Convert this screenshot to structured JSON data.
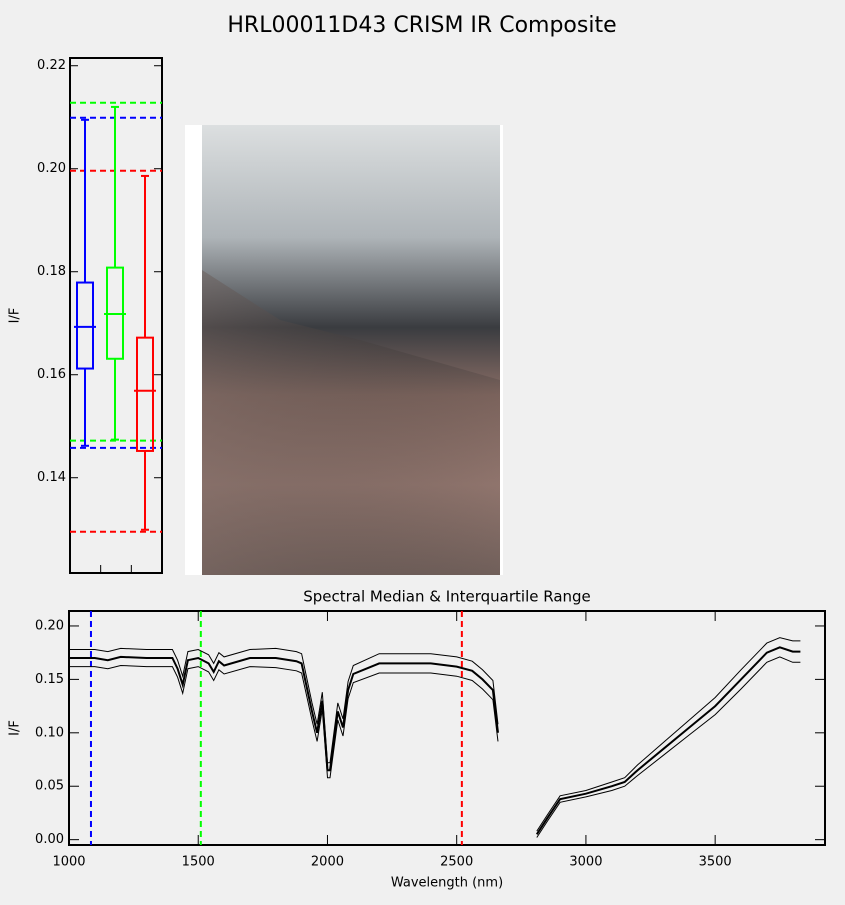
{
  "title": "HRL00011D43 CRISM IR Composite",
  "chart_data": [
    {
      "type": "box",
      "ylabel": "I/F",
      "ylim": [
        0.1215,
        0.2215
      ],
      "yticks": [
        0.14,
        0.16,
        0.18,
        {
          "value": 0.2,
          "label": "0.20"
        },
        0.22
      ],
      "boxes": [
        {
          "color": "#0000ff",
          "whisker_low": 0.1462,
          "q1": 0.1612,
          "median": 0.1693,
          "q3": 0.1779,
          "whisker_high": 0.2095
        },
        {
          "color": "#00ff00",
          "whisker_low": 0.1474,
          "q1": 0.1631,
          "median": 0.1718,
          "q3": 0.1808,
          "whisker_high": 0.212
        },
        {
          "color": "#ff0000",
          "whisker_low": 0.1299,
          "q1": 0.1452,
          "median": 0.1569,
          "q3": 0.1672,
          "whisker_high": 0.1986
        }
      ],
      "hlines": [
        {
          "value": 0.2099,
          "color": "#0000ff"
        },
        {
          "value": 0.1458,
          "color": "#0000ff"
        },
        {
          "value": 0.2128,
          "color": "#00ff00"
        },
        {
          "value": 0.1472,
          "color": "#00ff00"
        },
        {
          "value": 0.1996,
          "color": "#ff0000"
        },
        {
          "value": 0.1295,
          "color": "#ff0000"
        }
      ]
    },
    {
      "type": "line",
      "title": "Spectral Median & Interquartile Range",
      "xlabel": "Wavelength (nm)",
      "ylabel": "I/F",
      "xlim": [
        1000,
        3925
      ],
      "ylim": [
        -0.005,
        0.214
      ],
      "xticks": [
        1000,
        1500,
        2000,
        2500,
        3000,
        3500
      ],
      "yticks": [
        {
          "value": 0,
          "label": "0.00"
        },
        0.05,
        {
          "value": 0.1,
          "label": "0.10"
        },
        0.15,
        {
          "value": 0.2,
          "label": "0.20"
        }
      ],
      "x": [
        1000,
        1100,
        1150,
        1200,
        1300,
        1400,
        1420,
        1440,
        1460,
        1500,
        1540,
        1560,
        1580,
        1600,
        1700,
        1800,
        1880,
        1900,
        1940,
        1960,
        1980,
        2000,
        2010,
        2040,
        2060,
        2080,
        2100,
        2200,
        2300,
        2400,
        2500,
        2560,
        2600,
        2640,
        2660,
        2700,
        2810,
        2850,
        2900,
        3000,
        3100,
        3150,
        3200,
        3300,
        3400,
        3500,
        3600,
        3700,
        3750,
        3800,
        3830
      ],
      "series": [
        {
          "color": "#000000",
          "linewidth": 2,
          "values": [
            0.17,
            0.17,
            0.168,
            0.171,
            0.17,
            0.17,
            0.16,
            0.145,
            0.168,
            0.17,
            0.165,
            0.157,
            0.167,
            0.163,
            0.17,
            0.17,
            0.167,
            0.165,
            0.12,
            0.1,
            0.13,
            0.065,
            0.065,
            0.12,
            0.105,
            0.14,
            0.155,
            0.165,
            0.165,
            0.165,
            0.162,
            0.158,
            0.15,
            0.14,
            0.1,
            null,
            0.005,
            0.02,
            0.038,
            0.043,
            0.05,
            0.054,
            0.065,
            0.085,
            0.105,
            0.125,
            0.15,
            0.175,
            0.18,
            0.176,
            0.176
          ]
        },
        {
          "color": "#000000",
          "linewidth": 1,
          "values": [
            0.178,
            0.178,
            0.176,
            0.179,
            0.178,
            0.178,
            0.168,
            0.153,
            0.176,
            0.178,
            0.173,
            0.165,
            0.175,
            0.171,
            0.178,
            0.179,
            0.176,
            0.174,
            0.128,
            0.108,
            0.138,
            0.072,
            0.072,
            0.128,
            0.113,
            0.148,
            0.163,
            0.174,
            0.174,
            0.174,
            0.171,
            0.167,
            0.159,
            0.149,
            0.108,
            null,
            0.008,
            0.023,
            0.041,
            0.046,
            0.054,
            0.058,
            0.07,
            0.091,
            0.112,
            0.133,
            0.159,
            0.184,
            0.189,
            0.186,
            0.186
          ]
        },
        {
          "color": "#000000",
          "linewidth": 1,
          "values": [
            0.162,
            0.162,
            0.16,
            0.163,
            0.162,
            0.162,
            0.152,
            0.137,
            0.16,
            0.162,
            0.157,
            0.149,
            0.159,
            0.155,
            0.162,
            0.161,
            0.158,
            0.156,
            0.112,
            0.092,
            0.122,
            0.058,
            0.058,
            0.112,
            0.097,
            0.132,
            0.147,
            0.156,
            0.156,
            0.156,
            0.153,
            0.149,
            0.141,
            0.131,
            0.092,
            null,
            0.002,
            0.017,
            0.035,
            0.04,
            0.046,
            0.05,
            0.06,
            0.079,
            0.098,
            0.117,
            0.141,
            0.166,
            0.171,
            0.166,
            0.166
          ]
        }
      ],
      "vlines": [
        {
          "value": 1085,
          "color": "#0000ff"
        },
        {
          "value": 1510,
          "color": "#00ff00"
        },
        {
          "value": 2520,
          "color": "#ff0000"
        }
      ]
    }
  ]
}
